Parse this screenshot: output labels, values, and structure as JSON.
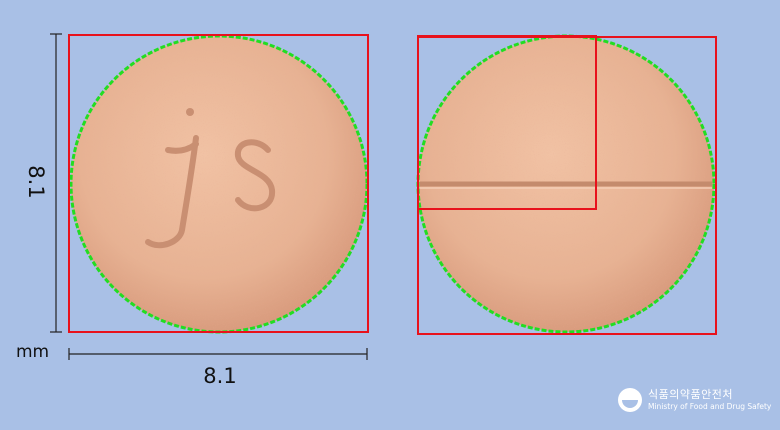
{
  "dimensions": {
    "height": "8.1",
    "width": "8.1",
    "unit": "mm"
  },
  "logo": {
    "korean": "식품의약품안전처",
    "english": "Ministry of Food and Drug Safety"
  },
  "pill": {
    "front_imprint": "JS",
    "back_feature": "score line",
    "color": "#e9b597"
  },
  "colors": {
    "background": "#a9c0e6",
    "box": "#e8121c",
    "outline": "#22dd22"
  }
}
